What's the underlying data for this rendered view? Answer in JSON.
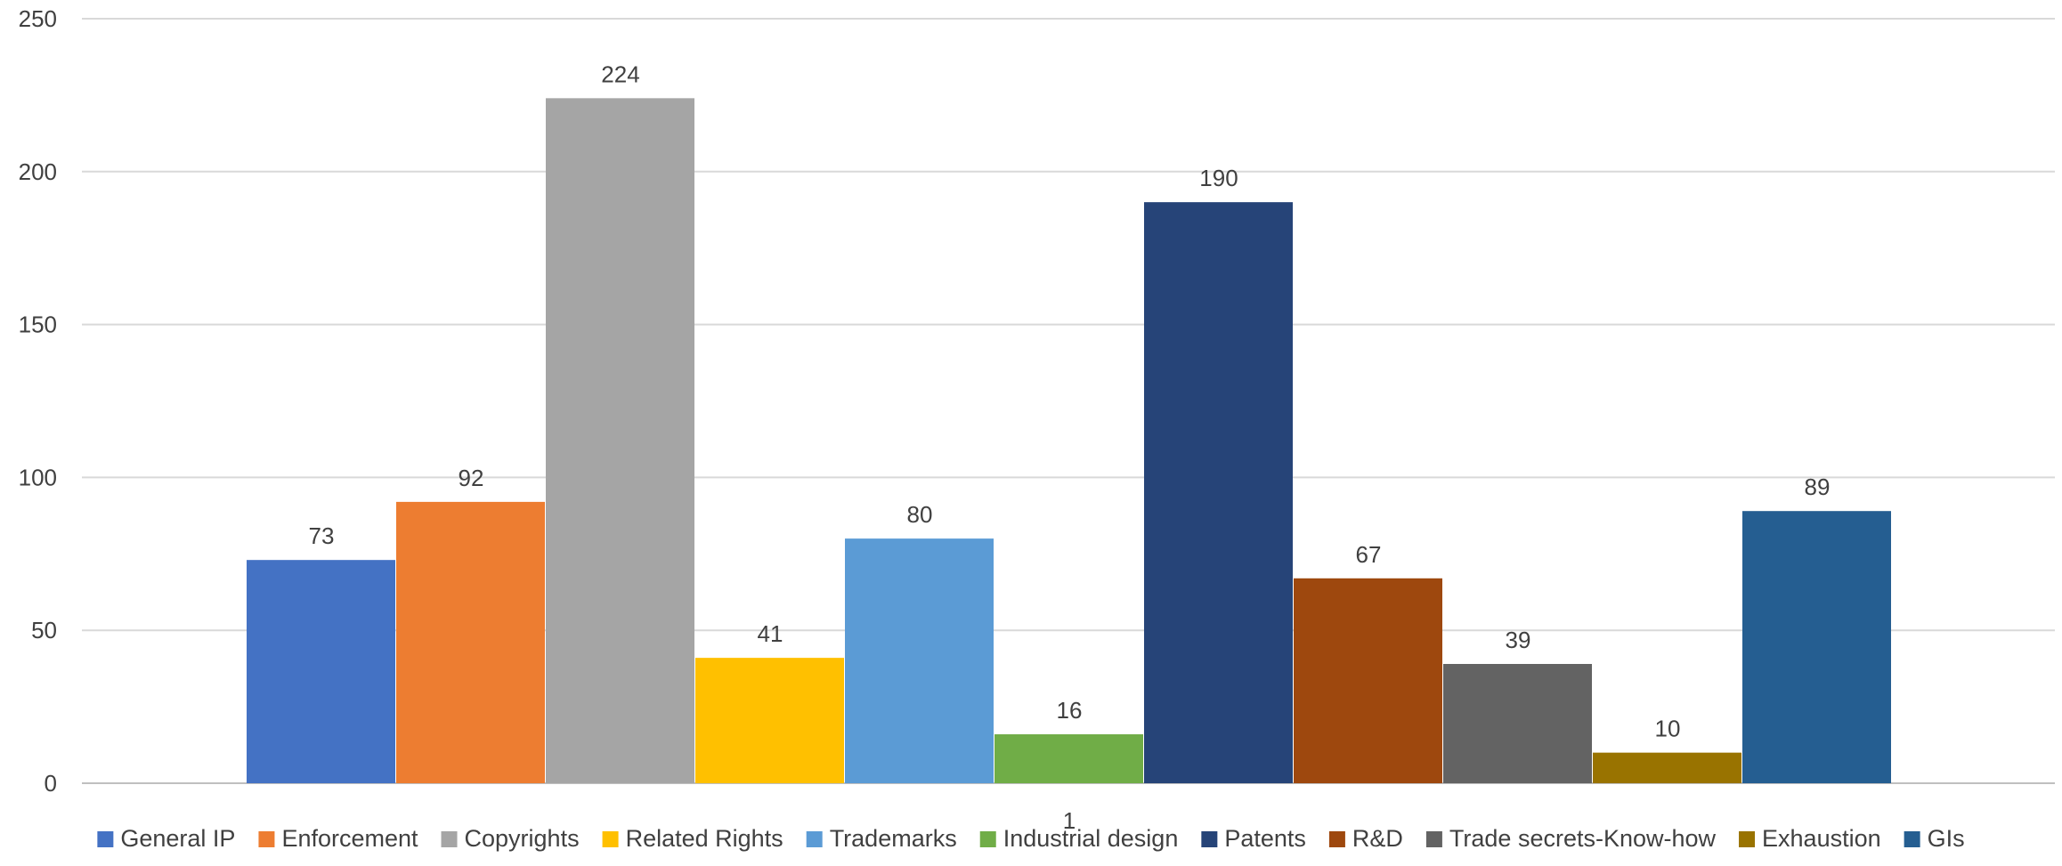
{
  "chart_data": {
    "type": "bar",
    "categories": [
      "1"
    ],
    "series": [
      {
        "name": "General IP",
        "values": [
          73
        ],
        "color": "#4472C4"
      },
      {
        "name": "Enforcement",
        "values": [
          92
        ],
        "color": "#ED7D31"
      },
      {
        "name": "Copyrights",
        "values": [
          224
        ],
        "color": "#A5A5A5"
      },
      {
        "name": "Related Rights",
        "values": [
          41
        ],
        "color": "#FFC000"
      },
      {
        "name": "Trademarks",
        "values": [
          80
        ],
        "color": "#5B9BD5"
      },
      {
        "name": "Industrial design",
        "values": [
          16
        ],
        "color": "#70AD47"
      },
      {
        "name": "Patents",
        "values": [
          190
        ],
        "color": "#264478"
      },
      {
        "name": "R&D",
        "values": [
          67
        ],
        "color": "#9E480E"
      },
      {
        "name": "Trade secrets-Know-how",
        "values": [
          39
        ],
        "color": "#636363"
      },
      {
        "name": "Exhaustion",
        "values": [
          10
        ],
        "color": "#997300"
      },
      {
        "name": "GIs",
        "values": [
          89
        ],
        "color": "#255E91"
      }
    ],
    "title": "",
    "xlabel": "",
    "ylabel": "",
    "ylim": [
      0,
      250
    ],
    "yticks": [
      0,
      50,
      100,
      150,
      200,
      250
    ],
    "grid": true,
    "legend_position": "bottom",
    "data_labels": true
  }
}
